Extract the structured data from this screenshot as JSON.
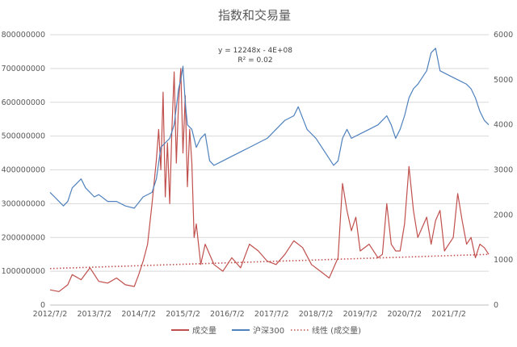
{
  "chart_data": {
    "type": "line",
    "title": "指数和交易量",
    "x_tick_labels": [
      "2012/7/2",
      "2013/7/2",
      "2014/7/2",
      "2015/7/2",
      "2016/7/2",
      "2017/7/2",
      "2018/7/2",
      "2019/7/2",
      "2020/7/2",
      "2021/7/2"
    ],
    "x_range": [
      2012.5,
      2022.4
    ],
    "y_left": {
      "ticks": [
        "0",
        "100000000",
        "200000000",
        "300000000",
        "400000000",
        "500000000",
        "600000000",
        "700000000",
        "800000000"
      ],
      "ylim": [
        0,
        800000000
      ]
    },
    "y_right": {
      "ticks": [
        "0",
        "1000",
        "2000",
        "3000",
        "4000",
        "5000",
        "6000"
      ],
      "ylim": [
        0,
        6000
      ]
    },
    "trendline_label": {
      "equation": "y = 12248x - 4E+08",
      "r2": "R² = 0.02"
    },
    "series": [
      {
        "name": "成交量",
        "axis": "left",
        "color": "#c0504d",
        "x": [
          2012.5,
          2012.7,
          2012.9,
          2013.0,
          2013.2,
          2013.4,
          2013.6,
          2013.8,
          2014.0,
          2014.2,
          2014.4,
          2014.5,
          2014.6,
          2014.7,
          2014.8,
          2014.9,
          2014.95,
          2015.0,
          2015.05,
          2015.1,
          2015.15,
          2015.2,
          2015.25,
          2015.3,
          2015.35,
          2015.4,
          2015.45,
          2015.5,
          2015.55,
          2015.6,
          2015.65,
          2015.7,
          2015.75,
          2015.8,
          2015.9,
          2016.0,
          2016.2,
          2016.4,
          2016.6,
          2016.8,
          2017.0,
          2017.2,
          2017.4,
          2017.6,
          2017.8,
          2018.0,
          2018.2,
          2018.4,
          2018.6,
          2018.8,
          2019.0,
          2019.1,
          2019.2,
          2019.3,
          2019.4,
          2019.5,
          2019.7,
          2019.9,
          2020.0,
          2020.1,
          2020.2,
          2020.3,
          2020.4,
          2020.5,
          2020.6,
          2020.7,
          2020.8,
          2020.9,
          2021.0,
          2021.1,
          2021.2,
          2021.3,
          2021.4,
          2021.5,
          2021.6,
          2021.7,
          2021.8,
          2021.9,
          2022.0,
          2022.1,
          2022.2,
          2022.3,
          2022.4
        ],
        "values": [
          45000000,
          40000000,
          60000000,
          90000000,
          75000000,
          110000000,
          70000000,
          65000000,
          80000000,
          60000000,
          55000000,
          90000000,
          130000000,
          180000000,
          300000000,
          430000000,
          520000000,
          400000000,
          630000000,
          320000000,
          480000000,
          300000000,
          520000000,
          690000000,
          420000000,
          600000000,
          700000000,
          450000000,
          620000000,
          350000000,
          520000000,
          420000000,
          200000000,
          240000000,
          120000000,
          180000000,
          120000000,
          100000000,
          140000000,
          110000000,
          180000000,
          160000000,
          130000000,
          120000000,
          150000000,
          190000000,
          170000000,
          120000000,
          100000000,
          80000000,
          140000000,
          360000000,
          280000000,
          220000000,
          260000000,
          160000000,
          180000000,
          140000000,
          150000000,
          300000000,
          180000000,
          160000000,
          160000000,
          240000000,
          410000000,
          280000000,
          200000000,
          230000000,
          260000000,
          180000000,
          250000000,
          280000000,
          160000000,
          180000000,
          200000000,
          330000000,
          250000000,
          180000000,
          200000000,
          140000000,
          180000000,
          170000000,
          150000000
        ]
      },
      {
        "name": "沪深300",
        "axis": "right",
        "color": "#4f81bd",
        "x": [
          2012.5,
          2012.6,
          2012.7,
          2012.8,
          2012.9,
          2013.0,
          2013.1,
          2013.2,
          2013.3,
          2013.4,
          2013.5,
          2013.6,
          2013.8,
          2014.0,
          2014.2,
          2014.4,
          2014.6,
          2014.8,
          2014.9,
          2015.0,
          2015.1,
          2015.2,
          2015.3,
          2015.4,
          2015.45,
          2015.5,
          2015.55,
          2015.6,
          2015.7,
          2015.8,
          2015.9,
          2016.0,
          2016.1,
          2016.2,
          2016.4,
          2016.6,
          2016.8,
          2017.0,
          2017.2,
          2017.4,
          2017.6,
          2017.8,
          2018.0,
          2018.1,
          2018.3,
          2018.5,
          2018.7,
          2018.9,
          2019.0,
          2019.1,
          2019.2,
          2019.3,
          2019.5,
          2019.7,
          2019.9,
          2020.0,
          2020.1,
          2020.2,
          2020.3,
          2020.4,
          2020.5,
          2020.6,
          2020.7,
          2020.8,
          2021.0,
          2021.1,
          2021.2,
          2021.3,
          2021.5,
          2021.7,
          2021.9,
          2022.0,
          2022.1,
          2022.2,
          2022.3,
          2022.4
        ],
        "values": [
          2500,
          2400,
          2300,
          2200,
          2300,
          2600,
          2700,
          2800,
          2600,
          2500,
          2400,
          2450,
          2300,
          2300,
          2200,
          2150,
          2400,
          2500,
          2800,
          3500,
          3600,
          3700,
          4000,
          4800,
          5000,
          5300,
          4500,
          4000,
          3900,
          3500,
          3700,
          3800,
          3200,
          3100,
          3200,
          3300,
          3400,
          3500,
          3600,
          3700,
          3900,
          4100,
          4200,
          4400,
          3900,
          3700,
          3400,
          3100,
          3200,
          3700,
          3900,
          3700,
          3800,
          3900,
          4000,
          4100,
          4200,
          4000,
          3700,
          3900,
          4200,
          4600,
          4800,
          4900,
          5200,
          5600,
          5700,
          5200,
          5100,
          5000,
          4900,
          4800,
          4600,
          4300,
          4100,
          4000
        ]
      },
      {
        "name": "线性 (成交量)",
        "axis": "left",
        "color": "#c0504d",
        "style": "dotted",
        "x": [
          2012.5,
          2022.4
        ],
        "values": [
          108000000,
          150000000
        ]
      }
    ],
    "legend": {
      "position": "bottom",
      "entries": [
        "成交量",
        "沪深300",
        "线性 (成交量)"
      ]
    },
    "grid": true
  }
}
